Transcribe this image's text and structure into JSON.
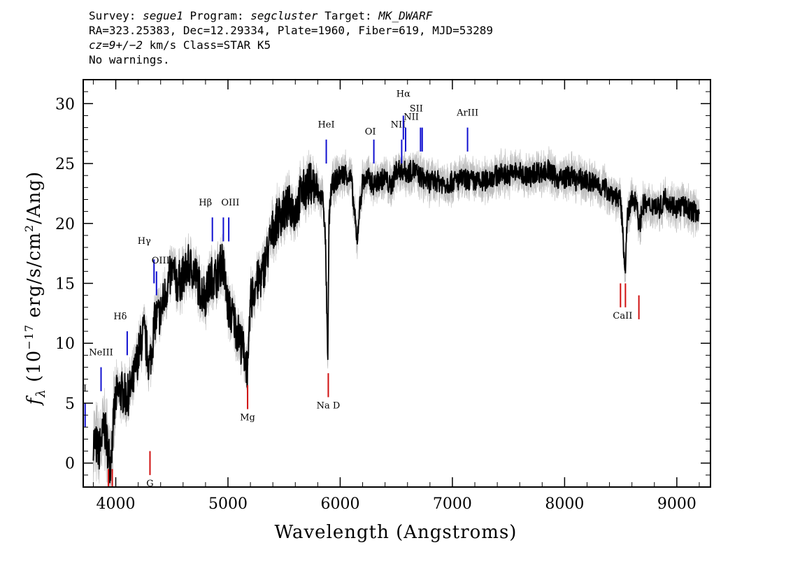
{
  "header": {
    "survey_label": "Survey:",
    "survey": "segue1",
    "program_label": "Program:",
    "program": "segcluster",
    "target_label": "Target:",
    "target": "MK_DWARF",
    "line2": "RA=323.25383, Dec=12.29334, Plate=1960, Fiber=619, MJD=53289",
    "cz_label": "cz=9+/−2",
    "cz_rest": " km/s Class=STAR K5",
    "line4": "No warnings."
  },
  "chart_data": {
    "type": "line",
    "title": "",
    "xlabel": "Wavelength (Angstroms)",
    "ylabel": "fλ (10⁻¹⁷ erg/s/cm²/Ang)",
    "xlim": [
      3710,
      9300
    ],
    "ylim": [
      -2,
      32
    ],
    "x_ticks": [
      4000,
      5000,
      6000,
      7000,
      8000,
      9000
    ],
    "y_ticks": [
      0,
      5,
      10,
      15,
      20,
      25,
      30
    ],
    "series": [
      {
        "style": "flux",
        "color": "#000000",
        "x": [
          3800,
          3850,
          3900,
          3950,
          4000,
          4050,
          4100,
          4150,
          4200,
          4250,
          4300,
          4350,
          4400,
          4450,
          4500,
          4550,
          4600,
          4650,
          4700,
          4750,
          4800,
          4850,
          4900,
          4950,
          5000,
          5050,
          5100,
          5150,
          5180,
          5200,
          5250,
          5300,
          5350,
          5400,
          5450,
          5500,
          5550,
          5600,
          5650,
          5700,
          5750,
          5800,
          5850,
          5870,
          5890,
          5900,
          5920,
          5950,
          6000,
          6050,
          6100,
          6150,
          6170,
          6200,
          6250,
          6300,
          6350,
          6400,
          6450,
          6500,
          6550,
          6600,
          6650,
          6700,
          6750,
          6800,
          6850,
          6900,
          6950,
          7000,
          7050,
          7100,
          7150,
          7200,
          7250,
          7300,
          7350,
          7400,
          7450,
          7500,
          7550,
          7600,
          7650,
          7700,
          7750,
          7800,
          7850,
          7900,
          7950,
          8000,
          8050,
          8100,
          8150,
          8200,
          8250,
          8300,
          8350,
          8400,
          8450,
          8500,
          8540,
          8560,
          8600,
          8650,
          8662,
          8700,
          8750,
          8800,
          8850,
          8900,
          8950,
          9000,
          9050,
          9100,
          9150,
          9200
        ],
        "values": [
          2.0,
          1.0,
          3.0,
          0.0,
          5.5,
          6.0,
          5.5,
          6.5,
          9.0,
          11.0,
          8.0,
          12.0,
          12.5,
          14.5,
          16.0,
          15.0,
          15.5,
          16.5,
          16.0,
          14.5,
          14.0,
          15.5,
          15.5,
          17.0,
          13.0,
          12.0,
          10.5,
          9.0,
          7.5,
          13.5,
          15.0,
          15.5,
          17.5,
          19.5,
          20.5,
          21.0,
          21.5,
          21.0,
          22.5,
          23.0,
          23.5,
          22.5,
          22.0,
          18.0,
          8.0,
          20.0,
          23.0,
          23.5,
          24.0,
          24.2,
          23.6,
          18.5,
          21.0,
          23.5,
          23.8,
          23.2,
          23.6,
          23.8,
          23.0,
          24.5,
          24.5,
          24.2,
          24.5,
          24.0,
          23.7,
          23.4,
          23.6,
          23.4,
          23.3,
          23.5,
          23.6,
          23.7,
          23.6,
          23.5,
          23.4,
          23.6,
          23.9,
          24.0,
          24.2,
          24.0,
          24.3,
          24.2,
          24.0,
          23.9,
          24.4,
          24.2,
          24.5,
          24.0,
          23.7,
          23.8,
          24.0,
          23.6,
          23.7,
          23.5,
          23.4,
          23.2,
          23.0,
          22.6,
          22.4,
          21.8,
          16.2,
          20.5,
          22.0,
          21.8,
          19.5,
          21.6,
          21.4,
          21.6,
          21.3,
          22.2,
          21.6,
          21.3,
          21.5,
          21.2,
          21.0,
          21.0
        ]
      }
    ],
    "emission_lines": [
      {
        "label": "OII",
        "x": 3727
      },
      {
        "label": "NeIII",
        "x": 3869
      },
      {
        "label": "Hδ",
        "x": 4102
      },
      {
        "label": "Hγ",
        "x": 4341
      },
      {
        "label": "OIII",
        "x": 4363
      },
      {
        "label": "Hβ",
        "x": 4861
      },
      {
        "label": "OIII",
        "x": 4959
      },
      {
        "label": "",
        "x": 5007
      },
      {
        "label": "HeI",
        "x": 5876
      },
      {
        "label": "OI",
        "x": 6300
      },
      {
        "label": "NII",
        "x": 6548
      },
      {
        "label": "Hα",
        "x": 6563
      },
      {
        "label": "NII",
        "x": 6583
      },
      {
        "label": "SII",
        "x": 6716
      },
      {
        "label": "",
        "x": 6731
      },
      {
        "label": "ArIII",
        "x": 7135
      }
    ],
    "absorption_lines": [
      {
        "label": "",
        "x": 3934
      },
      {
        "label": "",
        "x": 3969
      },
      {
        "label": "G",
        "x": 4305
      },
      {
        "label": "Mg",
        "x": 5175
      },
      {
        "label": "Na D",
        "x": 5894
      },
      {
        "label": "",
        "x": 8498
      },
      {
        "label": "CaII",
        "x": 8542
      },
      {
        "label": "",
        "x": 8662
      }
    ]
  }
}
